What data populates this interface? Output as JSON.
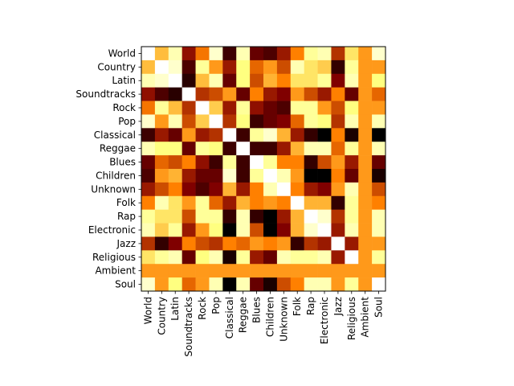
{
  "chart_data": {
    "type": "heatmap",
    "title": "",
    "xlabel": "",
    "ylabel": "",
    "colormap": "afmhot",
    "value_range": [
      0,
      1
    ],
    "grid": false,
    "legend": "none",
    "row_labels": [
      "World",
      "Country",
      "Latin",
      "Soundtracks",
      "Rock",
      "Pop",
      "Classical",
      "Reggae",
      "Blues",
      "Children",
      "Unknown",
      "Folk",
      "Rap",
      "Electronic",
      "Jazz",
      "Religious",
      "Ambient",
      "Soul"
    ],
    "col_labels": [
      "World",
      "Country",
      "Latin",
      "Soundtracks",
      "Rock",
      "Pop",
      "Classical",
      "Reggae",
      "Blues",
      "Children",
      "Unknown",
      "Folk",
      "Rap",
      "Electronic",
      "Jazz",
      "Religious",
      "Ambient",
      "Soul"
    ],
    "values": [
      [
        1.0,
        0.62,
        0.85,
        0.28,
        0.48,
        0.9,
        0.12,
        0.85,
        0.2,
        0.15,
        0.3,
        0.5,
        0.8,
        0.85,
        0.35,
        0.7,
        0.55,
        0.9
      ],
      [
        0.62,
        1.0,
        0.9,
        0.15,
        0.8,
        0.55,
        0.3,
        0.75,
        0.45,
        0.55,
        0.4,
        0.85,
        0.7,
        0.65,
        0.1,
        0.8,
        0.55,
        0.55
      ],
      [
        0.85,
        0.9,
        1.0,
        0.08,
        0.62,
        0.85,
        0.2,
        0.75,
        0.4,
        0.6,
        0.5,
        0.7,
        0.7,
        0.8,
        0.25,
        0.85,
        0.55,
        0.75
      ],
      [
        0.28,
        0.15,
        0.08,
        1.0,
        0.35,
        0.4,
        0.55,
        0.2,
        0.5,
        0.3,
        0.25,
        0.55,
        0.4,
        0.3,
        0.5,
        0.2,
        0.55,
        0.45
      ],
      [
        0.48,
        0.8,
        0.62,
        0.35,
        1.0,
        0.65,
        0.3,
        0.8,
        0.28,
        0.2,
        0.15,
        0.8,
        0.8,
        0.55,
        0.4,
        0.75,
        0.55,
        0.55
      ],
      [
        0.9,
        0.55,
        0.85,
        0.4,
        0.65,
        1.0,
        0.35,
        0.75,
        0.12,
        0.2,
        0.25,
        0.45,
        0.8,
        0.75,
        0.35,
        0.85,
        0.55,
        0.85
      ],
      [
        0.12,
        0.3,
        0.2,
        0.55,
        0.3,
        0.35,
        1.0,
        0.12,
        0.8,
        0.9,
        0.6,
        0.3,
        0.1,
        0.0,
        0.5,
        0.05,
        0.55,
        0.0
      ],
      [
        0.85,
        0.75,
        0.75,
        0.2,
        0.8,
        0.75,
        0.12,
        1.0,
        0.12,
        0.12,
        0.3,
        0.6,
        0.85,
        0.85,
        0.45,
        0.8,
        0.55,
        0.85
      ],
      [
        0.2,
        0.45,
        0.4,
        0.5,
        0.28,
        0.12,
        0.8,
        0.12,
        1.0,
        0.8,
        0.5,
        0.5,
        0.1,
        0.4,
        0.55,
        0.3,
        0.55,
        0.2
      ],
      [
        0.15,
        0.55,
        0.6,
        0.3,
        0.2,
        0.2,
        0.9,
        0.12,
        0.8,
        1.0,
        0.85,
        0.55,
        0.0,
        0.0,
        0.5,
        0.2,
        0.55,
        0.05
      ],
      [
        0.3,
        0.4,
        0.5,
        0.25,
        0.15,
        0.25,
        0.6,
        0.3,
        0.5,
        0.85,
        1.0,
        0.5,
        0.3,
        0.25,
        0.55,
        0.85,
        0.55,
        0.4
      ],
      [
        0.5,
        0.85,
        0.7,
        0.55,
        0.8,
        0.45,
        0.3,
        0.6,
        0.5,
        0.55,
        0.5,
        1.0,
        0.6,
        0.6,
        0.1,
        0.8,
        0.55,
        0.5
      ],
      [
        0.8,
        0.7,
        0.7,
        0.4,
        0.8,
        0.8,
        0.1,
        0.85,
        0.1,
        0.0,
        0.3,
        0.6,
        1.0,
        0.9,
        0.35,
        0.8,
        0.55,
        0.85
      ],
      [
        0.85,
        0.65,
        0.8,
        0.3,
        0.55,
        0.75,
        0.0,
        0.85,
        0.4,
        0.0,
        0.25,
        0.6,
        0.9,
        1.0,
        0.3,
        0.85,
        0.55,
        0.85
      ],
      [
        0.35,
        0.1,
        0.25,
        0.5,
        0.4,
        0.35,
        0.5,
        0.45,
        0.55,
        0.5,
        0.55,
        0.1,
        0.35,
        0.3,
        1.0,
        0.3,
        0.55,
        0.55
      ],
      [
        0.7,
        0.8,
        0.85,
        0.2,
        0.75,
        0.85,
        0.05,
        0.8,
        0.3,
        0.2,
        0.85,
        0.8,
        0.8,
        0.85,
        0.3,
        1.0,
        0.55,
        0.8
      ],
      [
        0.55,
        0.55,
        0.55,
        0.55,
        0.55,
        0.55,
        0.55,
        0.55,
        0.55,
        0.55,
        0.55,
        0.55,
        0.55,
        0.55,
        0.55,
        0.55,
        0.55,
        0.55
      ],
      [
        0.9,
        0.55,
        0.75,
        0.45,
        0.55,
        0.85,
        0.0,
        0.85,
        0.2,
        0.05,
        0.4,
        0.5,
        0.85,
        0.85,
        0.55,
        0.8,
        0.55,
        1.0
      ]
    ]
  }
}
